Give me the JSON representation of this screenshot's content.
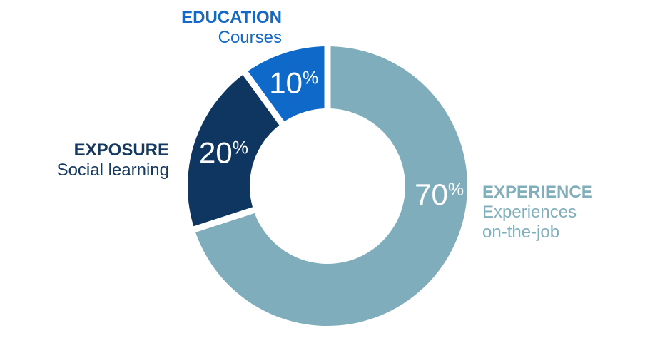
{
  "page": {
    "background_color": "#FFFFFF"
  },
  "chart_data": {
    "type": "pie",
    "variant": "donut",
    "direction": "clockwise",
    "start_angle_deg": 0,
    "unit": "%",
    "categories": [
      "EXPERIENCE",
      "EXPOSURE",
      "EDUCATION"
    ],
    "values": [
      70,
      20,
      10
    ],
    "separator_color": "#FFFFFF",
    "hole_color": "#FFFFFF",
    "legend_position": "callouts-outside",
    "slices": [
      {
        "name": "EXPERIENCE",
        "description_lines": [
          "Experiences",
          "on-the-job"
        ],
        "value": 70,
        "pct_label": "70",
        "pct_suffix": "%",
        "color": "#7FADBC",
        "text_color": "#82AEBC",
        "pct_label_color": "#FFFFFF",
        "pct_angle_deg": 94,
        "pct_radius": 157
      },
      {
        "name": "EXPOSURE",
        "description_lines": [
          "Social learning"
        ],
        "value": 20,
        "pct_label": "20",
        "pct_suffix": "%",
        "color": "#0F3660",
        "text_color": "#16395F",
        "pct_label_color": "#FFFFFF",
        "pct_angle_deg": 288,
        "pct_radius": 153
      },
      {
        "name": "EDUCATION",
        "description_lines": [
          "Courses"
        ],
        "value": 10,
        "pct_label": "10",
        "pct_suffix": "%",
        "color": "#0E69C8",
        "text_color": "#1568C6",
        "pct_label_color": "#FFFFFF",
        "pct_angle_deg": 342,
        "pct_radius": 153
      }
    ]
  }
}
